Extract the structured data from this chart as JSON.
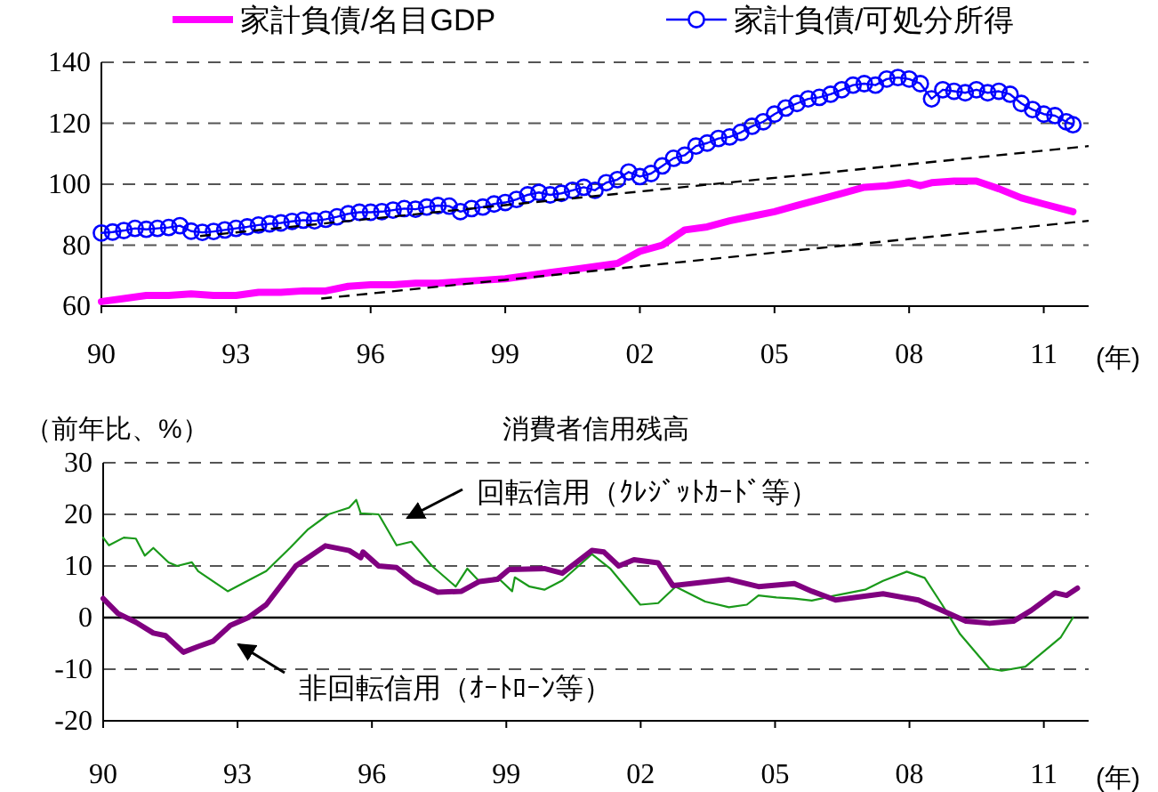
{
  "chart_data": [
    {
      "type": "line",
      "xlabel": "(年)",
      "xlim": [
        1990,
        2012
      ],
      "xticks": [
        {
          "value": 1990,
          "label": "90"
        },
        {
          "value": 1993,
          "label": "93"
        },
        {
          "value": 1996,
          "label": "96"
        },
        {
          "value": 1999,
          "label": "99"
        },
        {
          "value": 2002,
          "label": "02"
        },
        {
          "value": 2005,
          "label": "05"
        },
        {
          "value": 2008,
          "label": "08"
        },
        {
          "value": 2011,
          "label": "11"
        }
      ],
      "ylim": [
        60,
        140
      ],
      "yticks": [
        60,
        80,
        100,
        120,
        140
      ],
      "grid": "y",
      "legend": "top",
      "series": [
        {
          "name": "家計負債/名目GDP",
          "color": "#ff00ff",
          "marker": "none",
          "line_style": "solid",
          "x": [
            1990,
            1990.5,
            1991,
            1991.5,
            1992,
            1992.5,
            1993,
            1993.5,
            1994,
            1994.5,
            1995,
            1995.5,
            1996,
            1996.5,
            1997,
            1997.5,
            1998,
            1998.5,
            1999,
            1999.5,
            2000,
            2000.5,
            2001,
            2001.5,
            2002,
            2002.5,
            2003,
            2003.5,
            2004,
            2004.5,
            2005,
            2005.5,
            2006,
            2006.5,
            2007,
            2007.5,
            2008,
            2008.25,
            2008.5,
            2009,
            2009.5,
            2010,
            2010.5,
            2011,
            2011.65
          ],
          "values": [
            61.5,
            62.5,
            63.5,
            63.5,
            64,
            63.5,
            63.5,
            64.5,
            64.5,
            65,
            65,
            66.5,
            67,
            67,
            67.5,
            67.5,
            68,
            68.5,
            69,
            70,
            71,
            72,
            73,
            74,
            78,
            80,
            85,
            86,
            88,
            89.5,
            91,
            93,
            95,
            97,
            99,
            99.5,
            100.5,
            99.5,
            100.5,
            101,
            101,
            98.5,
            95.5,
            93.5,
            91
          ]
        },
        {
          "name": "家計負債/可処分所得",
          "color": "#0000ff",
          "marker": "circle",
          "line_style": "solid",
          "x": [
            1990,
            1990.25,
            1990.5,
            1990.75,
            1991,
            1991.25,
            1991.5,
            1991.75,
            1992,
            1992.25,
            1992.5,
            1992.75,
            1993,
            1993.25,
            1993.5,
            1993.75,
            1994,
            1994.25,
            1994.5,
            1994.75,
            1995,
            1995.25,
            1995.5,
            1995.75,
            1996,
            1996.25,
            1996.5,
            1996.75,
            1997,
            1997.25,
            1997.5,
            1997.75,
            1998,
            1998.25,
            1998.5,
            1998.75,
            1999,
            1999.25,
            1999.5,
            1999.75,
            2000,
            2000.25,
            2000.5,
            2000.75,
            2001,
            2001.25,
            2001.5,
            2001.75,
            2002,
            2002.25,
            2002.5,
            2002.75,
            2003,
            2003.25,
            2003.5,
            2003.75,
            2004,
            2004.25,
            2004.5,
            2004.75,
            2005,
            2005.25,
            2005.5,
            2005.75,
            2006,
            2006.25,
            2006.5,
            2006.75,
            2007,
            2007.25,
            2007.5,
            2007.75,
            2008,
            2008.25,
            2008.5,
            2008.75,
            2009,
            2009.25,
            2009.5,
            2009.75,
            2010,
            2010.25,
            2010.5,
            2010.75,
            2011,
            2011.25,
            2011.5,
            2011.65
          ],
          "values": [
            84,
            84.3,
            84.8,
            85.5,
            85.2,
            85.5,
            85.8,
            86.4,
            84.6,
            84.2,
            84.5,
            85,
            85.5,
            86,
            86.6,
            87,
            87.3,
            87.8,
            88.2,
            88,
            88.5,
            89.3,
            90.3,
            90.8,
            90.8,
            91,
            91.5,
            92,
            91.8,
            92.5,
            93,
            92.8,
            91,
            92,
            92.5,
            93.5,
            94,
            95,
            96.5,
            97.3,
            96.5,
            97,
            98,
            99,
            98,
            100.5,
            101.5,
            104,
            102.5,
            103.5,
            106,
            108.5,
            109.5,
            112.5,
            113.5,
            115,
            115.5,
            117,
            119,
            120.5,
            123,
            125,
            126.5,
            128,
            128.5,
            129.5,
            131,
            132.5,
            133,
            132.5,
            134.5,
            135,
            134.5,
            133,
            128,
            131,
            130.5,
            130,
            131,
            130,
            130.5,
            129.5,
            126.5,
            124.5,
            123,
            122.5,
            120.5,
            119.5
          ]
        },
        {
          "type": "line",
          "color": "#000000",
          "marker": "none",
          "line_style": "dashed",
          "x": [
            1992.2,
            2012
          ],
          "values": [
            83,
            112.5
          ]
        },
        {
          "type": "line",
          "color": "#000000",
          "marker": "none",
          "line_style": "dashed",
          "x": [
            1994.9,
            2012
          ],
          "values": [
            62.5,
            88
          ]
        }
      ]
    },
    {
      "type": "line",
      "title": "消費者信用残高",
      "ylabel": "（前年比、%）",
      "xlabel": "(年)",
      "xlim": [
        1990,
        2012
      ],
      "xticks": [
        {
          "value": 1990,
          "label": "90"
        },
        {
          "value": 1993,
          "label": "93"
        },
        {
          "value": 1996,
          "label": "96"
        },
        {
          "value": 1999,
          "label": "99"
        },
        {
          "value": 2002,
          "label": "02"
        },
        {
          "value": 2005,
          "label": "05"
        },
        {
          "value": 2008,
          "label": "08"
        },
        {
          "value": 2011,
          "label": "11"
        }
      ],
      "ylim": [
        -20,
        30
      ],
      "yticks": [
        -20,
        -10,
        0,
        10,
        20,
        30
      ],
      "grid": "y",
      "ref_lines": [
        {
          "axis": "y",
          "value": 0,
          "color": "#000000",
          "line_style": "solid"
        }
      ],
      "annotations": [
        "回転信用（ｸﾚｼﾞｯﾄｶｰﾄﾞ等）",
        "非回転信用（ｵｰﾄﾛｰﾝ等）"
      ],
      "series": [
        {
          "color": "#1a991a",
          "marker": "none",
          "line_style": "solid",
          "x": [
            1990,
            1990.13,
            1990.46,
            1990.73,
            1990.93,
            1991.12,
            1991.46,
            1991.65,
            1991.98,
            1992.12,
            1992.78,
            1993.24,
            1993.64,
            1994.17,
            1994.56,
            1995.03,
            1995.49,
            1995.65,
            1995.75,
            1996.15,
            1996.55,
            1996.88,
            1997.34,
            1997.87,
            1998.13,
            1998.4,
            1998.8,
            1999.13,
            1999.19,
            1999.52,
            1999.85,
            2000.25,
            2000.91,
            2001.33,
            2001.99,
            2002.39,
            2002.78,
            2003.44,
            2003.97,
            2004.37,
            2004.63,
            2005.03,
            2005.43,
            2005.82,
            2006.35,
            2007.01,
            2007.41,
            2007.94,
            2008.34,
            2008.73,
            2009.13,
            2009.79,
            2010.06,
            2010.59,
            2010.98,
            2011.38,
            2011.65
          ],
          "values": [
            15.5,
            14,
            15.5,
            15.3,
            12,
            13.5,
            10.7,
            10,
            10.7,
            9,
            5.1,
            7.2,
            9,
            13.5,
            17,
            20,
            21.3,
            22.8,
            20.2,
            20,
            14,
            14.7,
            10,
            6,
            9.5,
            7,
            7.8,
            5.1,
            7.8,
            6,
            5.4,
            7.2,
            12.3,
            9.4,
            2.5,
            2.8,
            6,
            3.1,
            2,
            2.5,
            4.3,
            3.9,
            3.7,
            3.3,
            4.3,
            5.4,
            7.1,
            8.9,
            7.7,
            2.5,
            -3.2,
            -9.9,
            -10.3,
            -9.5,
            -6.7,
            -3.8,
            0
          ]
        },
        {
          "color": "#800080",
          "marker": "none",
          "line_style": "solid",
          "x": [
            1990,
            1990.33,
            1990.73,
            1991.12,
            1991.39,
            1991.79,
            1992.12,
            1992.45,
            1992.84,
            1993.24,
            1993.64,
            1994.3,
            1994.96,
            1995.49,
            1995.75,
            1995.8,
            1996.15,
            1996.55,
            1996.94,
            1997.47,
            1998,
            1998.4,
            1998.8,
            1999.06,
            1999.85,
            2000.25,
            2000.91,
            2001.18,
            2001.51,
            2001.85,
            2002.39,
            2002.72,
            2003.44,
            2003.97,
            2004.63,
            2005.43,
            2005.82,
            2006.35,
            2007.41,
            2008.2,
            2008.73,
            2009.26,
            2009.79,
            2010.32,
            2010.72,
            2011.25,
            2011.51,
            2011.75
          ],
          "values": [
            3.7,
            0.8,
            -0.9,
            -3,
            -3.5,
            -6.7,
            -5.6,
            -4.6,
            -1.5,
            0,
            2.5,
            10,
            13.9,
            13,
            11.6,
            12.7,
            10,
            9.7,
            7,
            4.9,
            5.1,
            7,
            7.4,
            9.3,
            9.5,
            8.6,
            13,
            12.7,
            10,
            11.2,
            10.6,
            6.2,
            6.9,
            7.4,
            6,
            6.6,
            5.1,
            3.4,
            4.6,
            3.4,
            1.4,
            -0.7,
            -1.1,
            -0.7,
            1.4,
            4.8,
            4.3,
            5.7
          ]
        }
      ]
    }
  ]
}
